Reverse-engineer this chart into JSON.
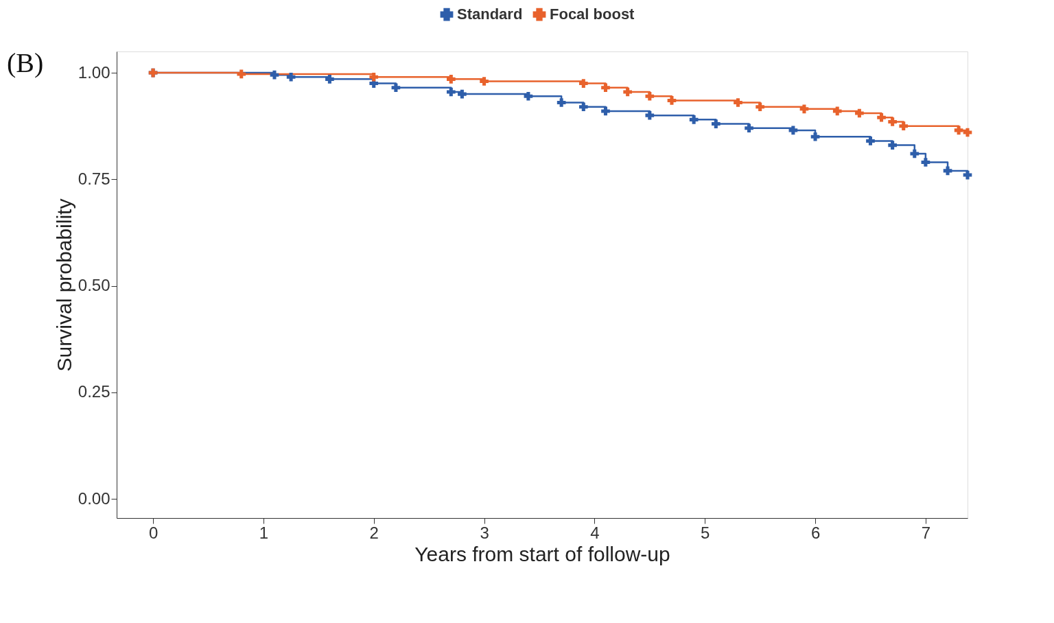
{
  "chart_data": {
    "type": "step",
    "xlabel": "Years from start of follow-up",
    "ylabel": "Survival probability",
    "annotations": [
      "(B)"
    ],
    "xlim": [
      -0.33,
      7.38
    ],
    "ylim": [
      -0.045,
      1.05
    ],
    "xticks": [
      0,
      1,
      2,
      3,
      4,
      5,
      6,
      7
    ],
    "yticks": [
      {
        "value": 0,
        "label": "0.00"
      },
      {
        "value": 0.25,
        "label": "0.25"
      },
      {
        "value": 0.5,
        "label": "0.50"
      },
      {
        "value": 0.75,
        "label": "0.75"
      },
      {
        "value": 1,
        "label": "1.00"
      }
    ],
    "grid": false,
    "legend": "top",
    "marker": "cross",
    "line_style": "solid",
    "series": [
      {
        "name": "Standard",
        "color": "#2e5eaa",
        "x": [
          0,
          1.1,
          1.25,
          1.6,
          2.0,
          2.2,
          2.7,
          2.8,
          3.4,
          3.7,
          3.9,
          4.1,
          4.5,
          4.9,
          5.1,
          5.4,
          5.8,
          6.0,
          6.5,
          6.7,
          6.9,
          7.0,
          7.2,
          7.38
        ],
        "values": [
          1.0,
          0.995,
          0.99,
          0.985,
          0.975,
          0.965,
          0.955,
          0.95,
          0.945,
          0.93,
          0.92,
          0.91,
          0.9,
          0.89,
          0.88,
          0.87,
          0.865,
          0.85,
          0.84,
          0.83,
          0.81,
          0.79,
          0.77,
          0.76
        ]
      },
      {
        "name": "Focal boost",
        "color": "#e8622c",
        "x": [
          0,
          0.8,
          2.0,
          2.7,
          3.0,
          3.9,
          4.1,
          4.3,
          4.5,
          4.7,
          5.3,
          5.5,
          5.9,
          6.2,
          6.4,
          6.6,
          6.7,
          6.8,
          7.3,
          7.38
        ],
        "values": [
          1.0,
          0.997,
          0.99,
          0.985,
          0.98,
          0.975,
          0.965,
          0.955,
          0.945,
          0.935,
          0.93,
          0.92,
          0.915,
          0.91,
          0.905,
          0.895,
          0.885,
          0.875,
          0.865,
          0.86
        ]
      }
    ]
  }
}
